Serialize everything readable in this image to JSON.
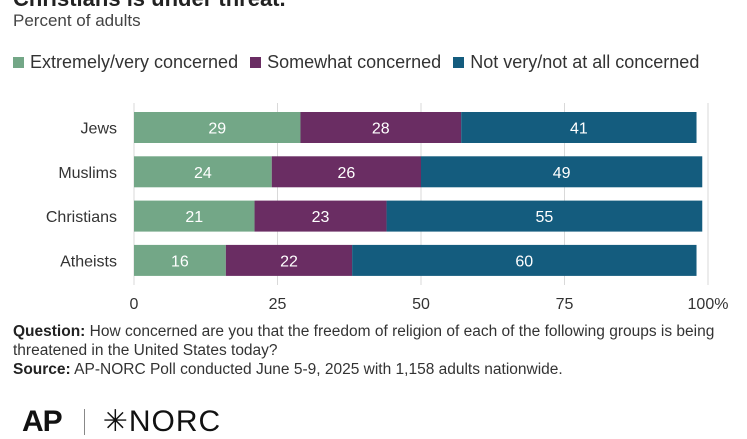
{
  "header": {
    "title": "Christians is under threat.",
    "subtitle": "Percent of adults"
  },
  "legend": [
    {
      "label": "Extremely/very concerned",
      "color": "#73a787"
    },
    {
      "label": "Somewhat concerned",
      "color": "#6a2d63"
    },
    {
      "label": "Not very/not at all concerned",
      "color": "#145c7e"
    }
  ],
  "chart_data": {
    "type": "bar",
    "orientation": "horizontal",
    "stacked": true,
    "categories": [
      "Jews",
      "Muslims",
      "Christians",
      "Atheists"
    ],
    "series": [
      {
        "name": "Extremely/very concerned",
        "values": [
          29,
          24,
          21,
          16
        ],
        "color": "#73a787"
      },
      {
        "name": "Somewhat concerned",
        "values": [
          28,
          26,
          23,
          22
        ],
        "color": "#6a2d63"
      },
      {
        "name": "Not very/not at all concerned",
        "values": [
          41,
          49,
          55,
          60
        ],
        "color": "#145c7e"
      }
    ],
    "xlim": [
      0,
      100
    ],
    "x_ticks": [
      "0",
      "25",
      "50",
      "75",
      "100%"
    ],
    "grid": "vertical"
  },
  "notes": {
    "question_label": "Question:",
    "question_text": " How concerned are you that the freedom of religion of each of the following groups is being threatened in the United States today?",
    "source_label": "Source:",
    "source_text": " AP-NORC Poll conducted June 5-9, 2025 with 1,158 adults nationwide."
  },
  "logos": {
    "ap": "AP",
    "norc": "✳NORC"
  }
}
